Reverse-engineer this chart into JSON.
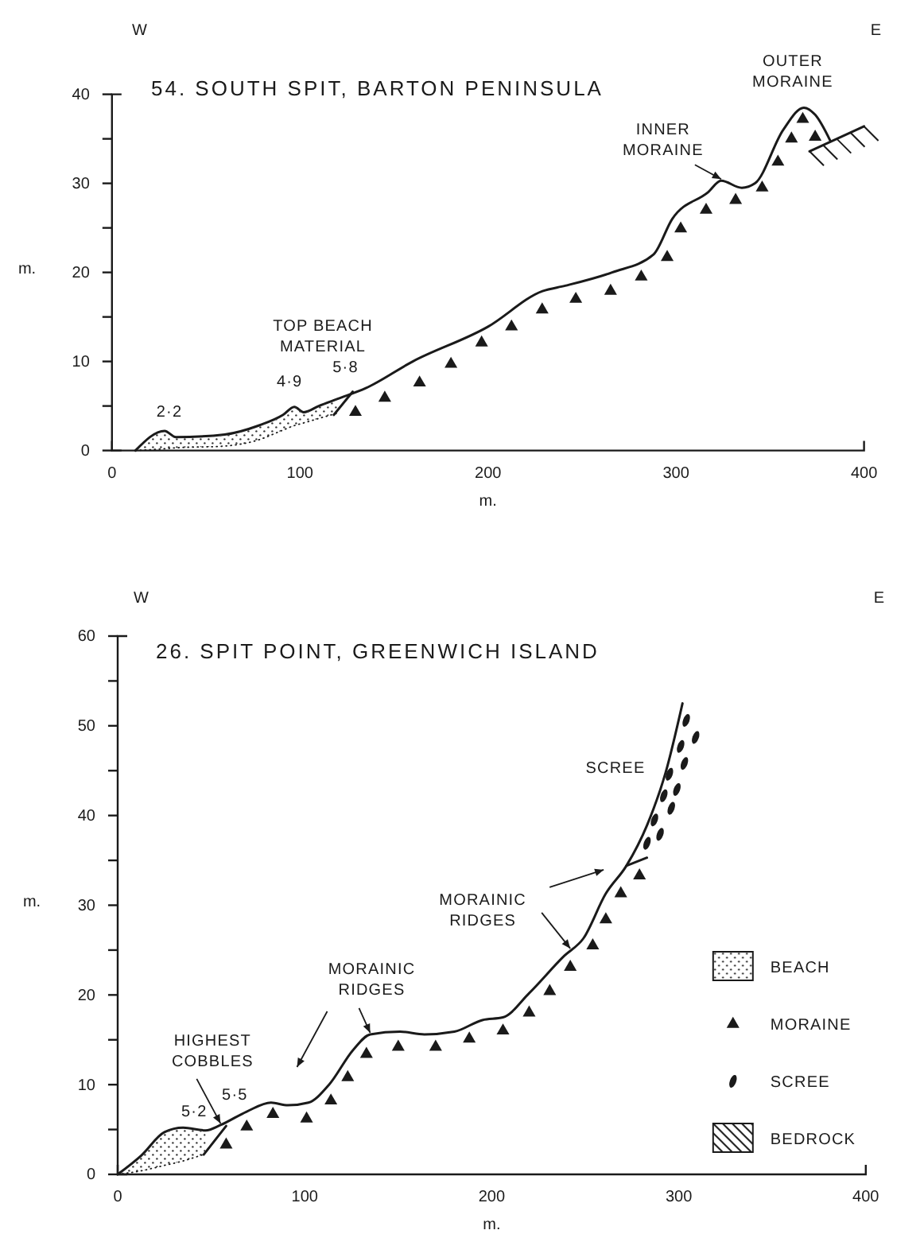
{
  "chart_data": [
    {
      "type": "line",
      "title": "54. SOUTH SPIT, BARTON PENINSULA",
      "xlabel": "m.",
      "ylabel": "m.",
      "xlim": [
        0,
        400
      ],
      "xticks": [
        0,
        100,
        200,
        300,
        400
      ],
      "ylim": [
        0,
        40
      ],
      "yticks": [
        0,
        {
          "value": 5,
          "label": null
        },
        10,
        {
          "value": 15,
          "label": null
        },
        20,
        {
          "value": 25,
          "label": null
        },
        30,
        {
          "value": 35,
          "label": null
        },
        40
      ],
      "grid": false,
      "annotations": [
        "W",
        "E",
        "TOP BEACH MATERIAL",
        {
          "text": "2·2",
          "x": 28,
          "y": 2.2
        },
        {
          "text": "4·9",
          "x": 97,
          "y": 4.9
        },
        {
          "text": "5·8",
          "x": 120,
          "y": 5.8
        },
        {
          "text": "INNER MORAINE",
          "x": 324,
          "y": 30.3
        },
        {
          "text": "OUTER MORAINE",
          "x": 368,
          "y": 38.5
        }
      ],
      "series": [
        {
          "type": "line",
          "color": "#1a1a1a",
          "x": [
            12.5,
            28,
            34,
            60,
            78,
            91,
            97,
            102,
            110,
            120,
            135,
            160,
            200,
            229,
            241,
            266,
            288,
            298,
            317,
            324,
            335,
            342,
            357,
            368,
            374,
            382
          ],
          "values": [
            0,
            2.2,
            1.5,
            1.8,
            2.8,
            4,
            4.9,
            4.3,
            5,
            5.8,
            7,
            10,
            13.9,
            17.9,
            18.5,
            20,
            22,
            26,
            29,
            30.3,
            29.5,
            30,
            36,
            38.5,
            37.7,
            34.8
          ]
        },
        {
          "type": "area",
          "color": "#1a1a1a",
          "x": [
            12.5,
            28,
            34,
            60,
            78,
            91,
            97,
            102,
            110,
            120
          ],
          "values": [
            0,
            2.2,
            1.5,
            1.8,
            2.8,
            4,
            4.9,
            4.3,
            5,
            5.8
          ]
        },
        {
          "type": "line",
          "color": "#1a1a1a",
          "x": [
            118,
            128
          ],
          "values": [
            4,
            6.6
          ]
        },
        {
          "type": "line",
          "line_style": "dotted",
          "color": "#1a1a1a",
          "x": [
            12.5,
            28,
            34,
            60,
            78,
            91,
            97,
            102,
            110,
            120
          ],
          "values": [
            0,
            0.2,
            0.3,
            0.5,
            1.2,
            2.3,
            2.8,
            3.1,
            3.6,
            4.2
          ]
        },
        {
          "type": "scatter",
          "marker": "triangle",
          "color": "#1a1a1a",
          "x": [
            129.5,
            145.1,
            163.6,
            180.3,
            196.6,
            212.5,
            228.8,
            246.7,
            265.2,
            281.5,
            295.3,
            302.5,
            316,
            331.7,
            345.8,
            354.2,
            361.4,
            367.4,
            374
          ],
          "values": [
            4.3,
            5.9,
            7.6,
            9.7,
            12.1,
            13.9,
            15.8,
            17,
            17.9,
            19.5,
            21.7,
            24.9,
            27,
            28.1,
            29.5,
            32.4,
            35,
            37.2,
            35.2
          ]
        },
        {
          "type": "line",
          "color": "#1a1a1a",
          "x": [
            371,
            400
          ],
          "values": [
            33.6,
            36.4
          ]
        }
      ]
    },
    {
      "type": "line",
      "title": "26. SPIT POINT, GREENWICH ISLAND",
      "xlabel": "m.",
      "ylabel": "m.",
      "xlim": [
        0,
        400
      ],
      "xticks": [
        0,
        100,
        200,
        300,
        400
      ],
      "ylim": [
        0,
        60
      ],
      "yticks": [
        0,
        {
          "value": 5,
          "label": null
        },
        10,
        {
          "value": 15,
          "label": null
        },
        20,
        {
          "value": 25,
          "label": null
        },
        30,
        {
          "value": 35,
          "label": null
        },
        40,
        {
          "value": 45,
          "label": null
        },
        50,
        {
          "value": 55,
          "label": null
        },
        60
      ],
      "grid": false,
      "legend": "right",
      "annotations": [
        "W",
        "E",
        {
          "text": "HIGHEST COBBLES",
          "x": 55,
          "y": 5.5
        },
        {
          "text": "5·2",
          "x": 35,
          "y": 5.2
        },
        {
          "text": "5·5",
          "x": 55,
          "y": 5.5
        },
        {
          "text": "MORAINIC RIDGES",
          "x": 135,
          "y": 15.6
        },
        {
          "text": "MORAINIC RIDGES",
          "x": 242,
          "y": 25
        },
        "SCREE"
      ],
      "series": [
        {
          "type": "line",
          "color": "#1a1a1a",
          "x": [
            0,
            12.6,
            25,
            35,
            47,
            55,
            69,
            82,
            91,
            102,
            113,
            126,
            135,
            151,
            164,
            180,
            195,
            206,
            220,
            239,
            249,
            261,
            272,
            283,
            293,
            302
          ],
          "values": [
            0,
            2.1,
            4.7,
            5.2,
            4.9,
            5.5,
            7,
            8,
            7.7,
            8,
            10,
            13.9,
            15.6,
            15.9,
            15.6,
            15.9,
            17.2,
            17.5,
            20.2,
            24.4,
            26.3,
            31.3,
            34.4,
            38.9,
            44.8,
            52.5
          ]
        },
        {
          "type": "line",
          "color": "#1a1a1a",
          "x": [
            46,
            58
          ],
          "values": [
            2.2,
            5.4
          ]
        },
        {
          "type": "line",
          "color": "#1a1a1a",
          "x": [
            272,
            283
          ],
          "values": [
            34.4,
            35.3
          ]
        },
        {
          "type": "area",
          "name": "BEACH",
          "color": "#1a1a1a",
          "x": [
            0,
            12.6,
            25,
            35,
            47
          ],
          "values": [
            0,
            2.1,
            4.7,
            5.2,
            4.9
          ]
        },
        {
          "type": "line",
          "line_style": "dotted",
          "color": "#1a1a1a",
          "x": [
            0,
            12.6,
            25,
            35,
            47
          ],
          "values": [
            0,
            0.4,
            1,
            1.5,
            2.3
          ]
        },
        {
          "type": "scatter",
          "name": "MORAINE",
          "marker": "triangle",
          "color": "#1a1a1a",
          "x": [
            58,
            69,
            83,
            101,
            114,
            123,
            133,
            150,
            170,
            188,
            206,
            220,
            231,
            242,
            254,
            261,
            269,
            279
          ],
          "values": [
            3.3,
            5.3,
            6.7,
            6.2,
            8.2,
            10.8,
            13.4,
            14.2,
            14.2,
            15.1,
            16,
            18,
            20.4,
            23.1,
            25.5,
            28.4,
            31.3,
            33.3
          ]
        },
        {
          "type": "scatter",
          "name": "SCREE",
          "marker": "circle",
          "color": "#1a1a1a",
          "x": [
            283,
            290,
            287,
            296,
            292,
            299,
            295,
            303,
            301,
            309,
            304
          ],
          "values": [
            36.9,
            37.9,
            39.5,
            40.8,
            42.2,
            42.9,
            44.6,
            45.8,
            47.7,
            48.7,
            50.6
          ]
        },
        {
          "type": "line",
          "name": "BEDROCK",
          "color": "#1a1a1a"
        }
      ]
    }
  ]
}
